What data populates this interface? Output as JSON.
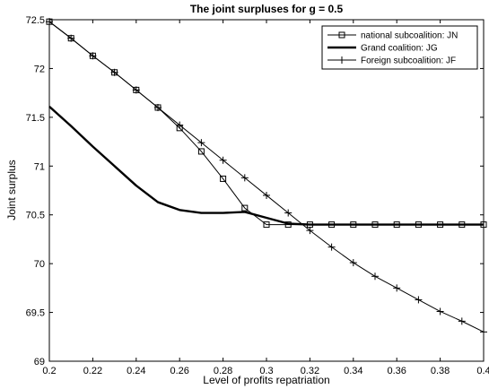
{
  "chart_data": {
    "type": "line",
    "title": "The joint surpluses for g = 0.5",
    "xlabel": "Level of profits repatriation",
    "ylabel": "Joint surplus",
    "xlim": [
      0.2,
      0.4
    ],
    "ylim": [
      69,
      72.5
    ],
    "x_ticks": [
      0.2,
      0.22,
      0.24,
      0.26,
      0.28,
      0.3,
      0.32,
      0.34,
      0.36,
      0.38,
      0.4
    ],
    "x_tick_labels": [
      "0.2",
      "0.22",
      "0.24",
      "0.26",
      "0.28",
      "0.3",
      "0.32",
      "0.34",
      "0.36",
      "0.38",
      "0.4"
    ],
    "y_ticks": [
      69,
      69.5,
      70,
      70.5,
      71,
      71.5,
      72,
      72.5
    ],
    "y_tick_labels": [
      "69",
      "69.5",
      "70",
      "70.5",
      "71",
      "71.5",
      "72",
      "72.5"
    ],
    "grid": false,
    "legend_position": "top-right",
    "x": [
      0.2,
      0.21,
      0.22,
      0.23,
      0.24,
      0.25,
      0.26,
      0.27,
      0.28,
      0.29,
      0.3,
      0.31,
      0.32,
      0.33,
      0.34,
      0.35,
      0.36,
      0.37,
      0.38,
      0.39,
      0.4
    ],
    "series": [
      {
        "name": "national subcoalition: JN",
        "marker": "square",
        "line_width": "thin",
        "color": "#000000",
        "values": [
          72.48,
          72.31,
          72.13,
          71.96,
          71.78,
          71.6,
          71.39,
          71.15,
          70.87,
          70.57,
          70.4,
          70.4,
          70.4,
          70.4,
          70.4,
          70.4,
          70.4,
          70.4,
          70.4,
          70.4,
          70.4
        ]
      },
      {
        "name": "Grand coalition: JG",
        "marker": "none",
        "line_width": "thick",
        "color": "#000000",
        "values": [
          71.61,
          71.41,
          71.2,
          71.0,
          70.8,
          70.63,
          70.55,
          70.52,
          70.52,
          70.53,
          70.47,
          70.41,
          70.4,
          70.4,
          70.4,
          70.4,
          70.4,
          70.4,
          70.4,
          70.4,
          70.4
        ]
      },
      {
        "name": "Foreign subcoalition: JF",
        "marker": "plus",
        "line_width": "thin",
        "color": "#000000",
        "values": [
          72.48,
          72.31,
          72.13,
          71.96,
          71.78,
          71.6,
          71.42,
          71.24,
          71.06,
          70.88,
          70.7,
          70.52,
          70.34,
          70.17,
          70.01,
          69.87,
          69.75,
          69.63,
          69.51,
          69.41,
          69.3
        ]
      }
    ]
  }
}
